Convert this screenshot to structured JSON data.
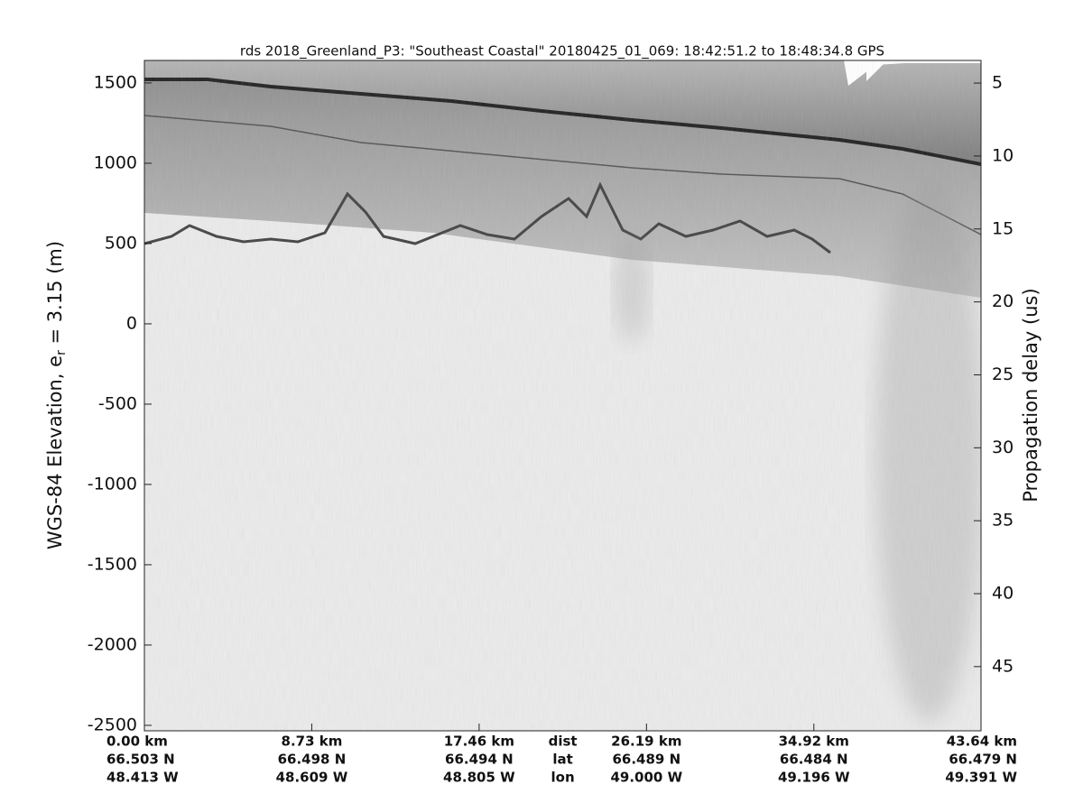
{
  "chart_data": {
    "type": "radargram",
    "title": "rds 2018_Greenland_P3: \"Southeast Coastal\"  20180425_01_069: 18:42:51.2 to 18:48:34.8 GPS",
    "ylabel_parts": [
      "WGS-84 Elevation, e",
      "r",
      " = 3.15 (m)"
    ],
    "y2label": "Propagation delay (us)",
    "ylim": [
      -2534,
      1640
    ],
    "yticks": [
      1500,
      1000,
      500,
      0,
      -500,
      -1000,
      -1500,
      -2000,
      -2500
    ],
    "y2lim": [
      3.45,
      49.4
    ],
    "y2ticks": [
      5,
      10,
      15,
      20,
      25,
      30,
      35,
      40,
      45
    ],
    "xlim": [
      0,
      43.64
    ],
    "xticks": [
      {
        "value": 0,
        "label": "0.00 km"
      },
      {
        "value": 8.73,
        "label": "8.73 km"
      },
      {
        "value": 17.46,
        "label": "17.46 km"
      },
      {
        "value": 26.19,
        "label": "26.19 km"
      },
      {
        "value": 34.92,
        "label": "34.92 km"
      },
      {
        "value": 43.64,
        "label": "43.64 km"
      }
    ],
    "lat_labels": [
      "66.503 N",
      "66.498 N",
      "66.494 N",
      "66.489 N",
      "66.484 N",
      "66.479 N"
    ],
    "lon_labels": [
      "48.413 W",
      "48.609 W",
      "48.805 W",
      "49.000 W",
      "49.196 W",
      "49.391 W"
    ],
    "row_labels": [
      "dist",
      "lat",
      "lon"
    ]
  }
}
